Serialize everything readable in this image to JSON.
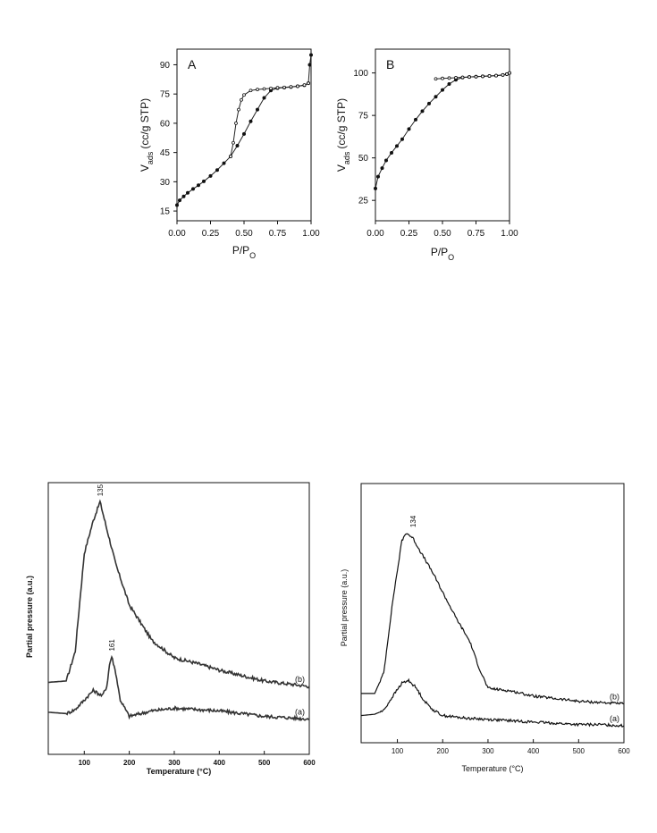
{
  "chart_data": [
    {
      "type": "line",
      "panel_label": "A",
      "xlabel": "P/P",
      "xlabel_sub": "O",
      "ylabel_main": "V",
      "ylabel_sub": "ads",
      "ylabel_unit": "(cc/g STP)",
      "xlim": [
        0,
        1
      ],
      "ylim": [
        10,
        98
      ],
      "xticks": [
        "0.00",
        "0.25",
        "0.50",
        "0.75",
        "1.00"
      ],
      "yticks": [
        "15",
        "30",
        "45",
        "60",
        "75",
        "90"
      ],
      "series": [
        {
          "marker": "filled",
          "x": [
            0.0,
            0.02,
            0.05,
            0.08,
            0.12,
            0.16,
            0.2,
            0.25,
            0.3,
            0.35,
            0.4,
            0.45,
            0.5,
            0.55,
            0.6,
            0.65,
            0.7,
            0.75,
            0.8,
            0.85,
            0.9,
            0.95,
            0.98,
            0.99,
            1.0
          ],
          "y": [
            18,
            20.5,
            22.5,
            24.3,
            26.3,
            28.2,
            30.2,
            33,
            36,
            39.5,
            43,
            48.5,
            54.5,
            61,
            67,
            73,
            76.8,
            78,
            78.3,
            78.6,
            79,
            79.5,
            80.5,
            90,
            95
          ]
        },
        {
          "marker": "open",
          "x": [
            0.4,
            0.42,
            0.44,
            0.46,
            0.48,
            0.5,
            0.55,
            0.6,
            0.65,
            0.7,
            0.75,
            0.8,
            0.85,
            0.9,
            0.95,
            0.98
          ],
          "y": [
            43,
            50,
            60,
            67,
            72,
            74.5,
            76.8,
            77.3,
            77.6,
            77.9,
            78.2,
            78.4,
            78.7,
            79,
            79.6,
            80.5
          ]
        }
      ]
    },
    {
      "type": "line",
      "panel_label": "B",
      "xlabel": "P/P",
      "xlabel_sub": "O",
      "ylabel_main": "V",
      "ylabel_sub": "ads",
      "ylabel_unit": "(cc/g STP)",
      "xlim": [
        0,
        1
      ],
      "ylim": [
        13,
        114
      ],
      "xticks": [
        "0.00",
        "0.25",
        "0.50",
        "0.75",
        "1.00"
      ],
      "yticks": [
        "25",
        "50",
        "75",
        "100"
      ],
      "series": [
        {
          "marker": "filled",
          "x": [
            0.0,
            0.02,
            0.05,
            0.08,
            0.12,
            0.16,
            0.2,
            0.25,
            0.3,
            0.35,
            0.4,
            0.45,
            0.5,
            0.55,
            0.6,
            0.65,
            0.7,
            0.75,
            0.8,
            0.85,
            0.9,
            0.95,
            0.98,
            1.0
          ],
          "y": [
            32,
            39,
            44,
            48.5,
            53,
            57,
            61,
            67,
            72.5,
            77.5,
            82,
            86,
            90,
            93.5,
            96,
            97.3,
            97.6,
            97.8,
            98,
            98.2,
            98.4,
            98.8,
            99.3,
            100
          ]
        },
        {
          "marker": "open",
          "x": [
            0.45,
            0.5,
            0.55,
            0.6,
            0.65,
            0.7,
            0.75,
            0.8,
            0.85,
            0.9,
            0.95,
            0.98,
            1.0
          ],
          "y": [
            96.5,
            96.8,
            97,
            97.2,
            97.4,
            97.6,
            97.8,
            98,
            98.2,
            98.4,
            98.8,
            99.3,
            100
          ]
        }
      ]
    },
    {
      "type": "line",
      "xlabel": "Temperature (°C)",
      "ylabel": "Partial pressure (a.u.)",
      "xlim": [
        20,
        600
      ],
      "xticks": [
        "100",
        "200",
        "300",
        "400",
        "500",
        "600"
      ],
      "yticks_shown": false,
      "annotations": [
        "135",
        "161"
      ],
      "series": [
        {
          "name": "(b)",
          "x": [
            20,
            60,
            80,
            100,
            120,
            135,
            150,
            170,
            200,
            250,
            300,
            350,
            400,
            450,
            500,
            550,
            600
          ],
          "y": [
            0.265,
            0.27,
            0.38,
            0.74,
            0.86,
            0.93,
            0.83,
            0.7,
            0.55,
            0.42,
            0.355,
            0.335,
            0.31,
            0.29,
            0.27,
            0.26,
            0.25
          ]
        },
        {
          "name": "(a)",
          "x": [
            20,
            60,
            80,
            100,
            120,
            140,
            150,
            156,
            161,
            170,
            180,
            200,
            250,
            300,
            350,
            400,
            450,
            500,
            550,
            600
          ],
          "y": [
            0.155,
            0.15,
            0.165,
            0.2,
            0.235,
            0.215,
            0.25,
            0.33,
            0.36,
            0.3,
            0.2,
            0.14,
            0.16,
            0.17,
            0.165,
            0.16,
            0.15,
            0.14,
            0.135,
            0.13
          ]
        }
      ]
    },
    {
      "type": "line",
      "xlabel": "Temperature (°C)",
      "ylabel": "Partial pressure (a.u.)",
      "xlim": [
        20,
        600
      ],
      "xticks": [
        "100",
        "200",
        "300",
        "400",
        "500",
        "600"
      ],
      "yticks_shown": false,
      "annotations": [
        "134"
      ],
      "series": [
        {
          "name": "(b)",
          "x": [
            20,
            50,
            70,
            90,
            110,
            120,
            134,
            150,
            180,
            200,
            230,
            260,
            280,
            300,
            350,
            400,
            450,
            500,
            550,
            600
          ],
          "y": [
            0.19,
            0.19,
            0.27,
            0.55,
            0.78,
            0.81,
            0.79,
            0.74,
            0.65,
            0.58,
            0.48,
            0.39,
            0.29,
            0.21,
            0.2,
            0.18,
            0.17,
            0.16,
            0.155,
            0.15
          ]
        },
        {
          "name": "(a)",
          "x": [
            20,
            50,
            70,
            90,
            110,
            125,
            140,
            160,
            180,
            200,
            250,
            300,
            350,
            400,
            450,
            500,
            550,
            600
          ],
          "y": [
            0.105,
            0.11,
            0.125,
            0.18,
            0.23,
            0.24,
            0.215,
            0.16,
            0.125,
            0.105,
            0.095,
            0.09,
            0.085,
            0.08,
            0.075,
            0.07,
            0.07,
            0.065
          ]
        }
      ]
    }
  ]
}
